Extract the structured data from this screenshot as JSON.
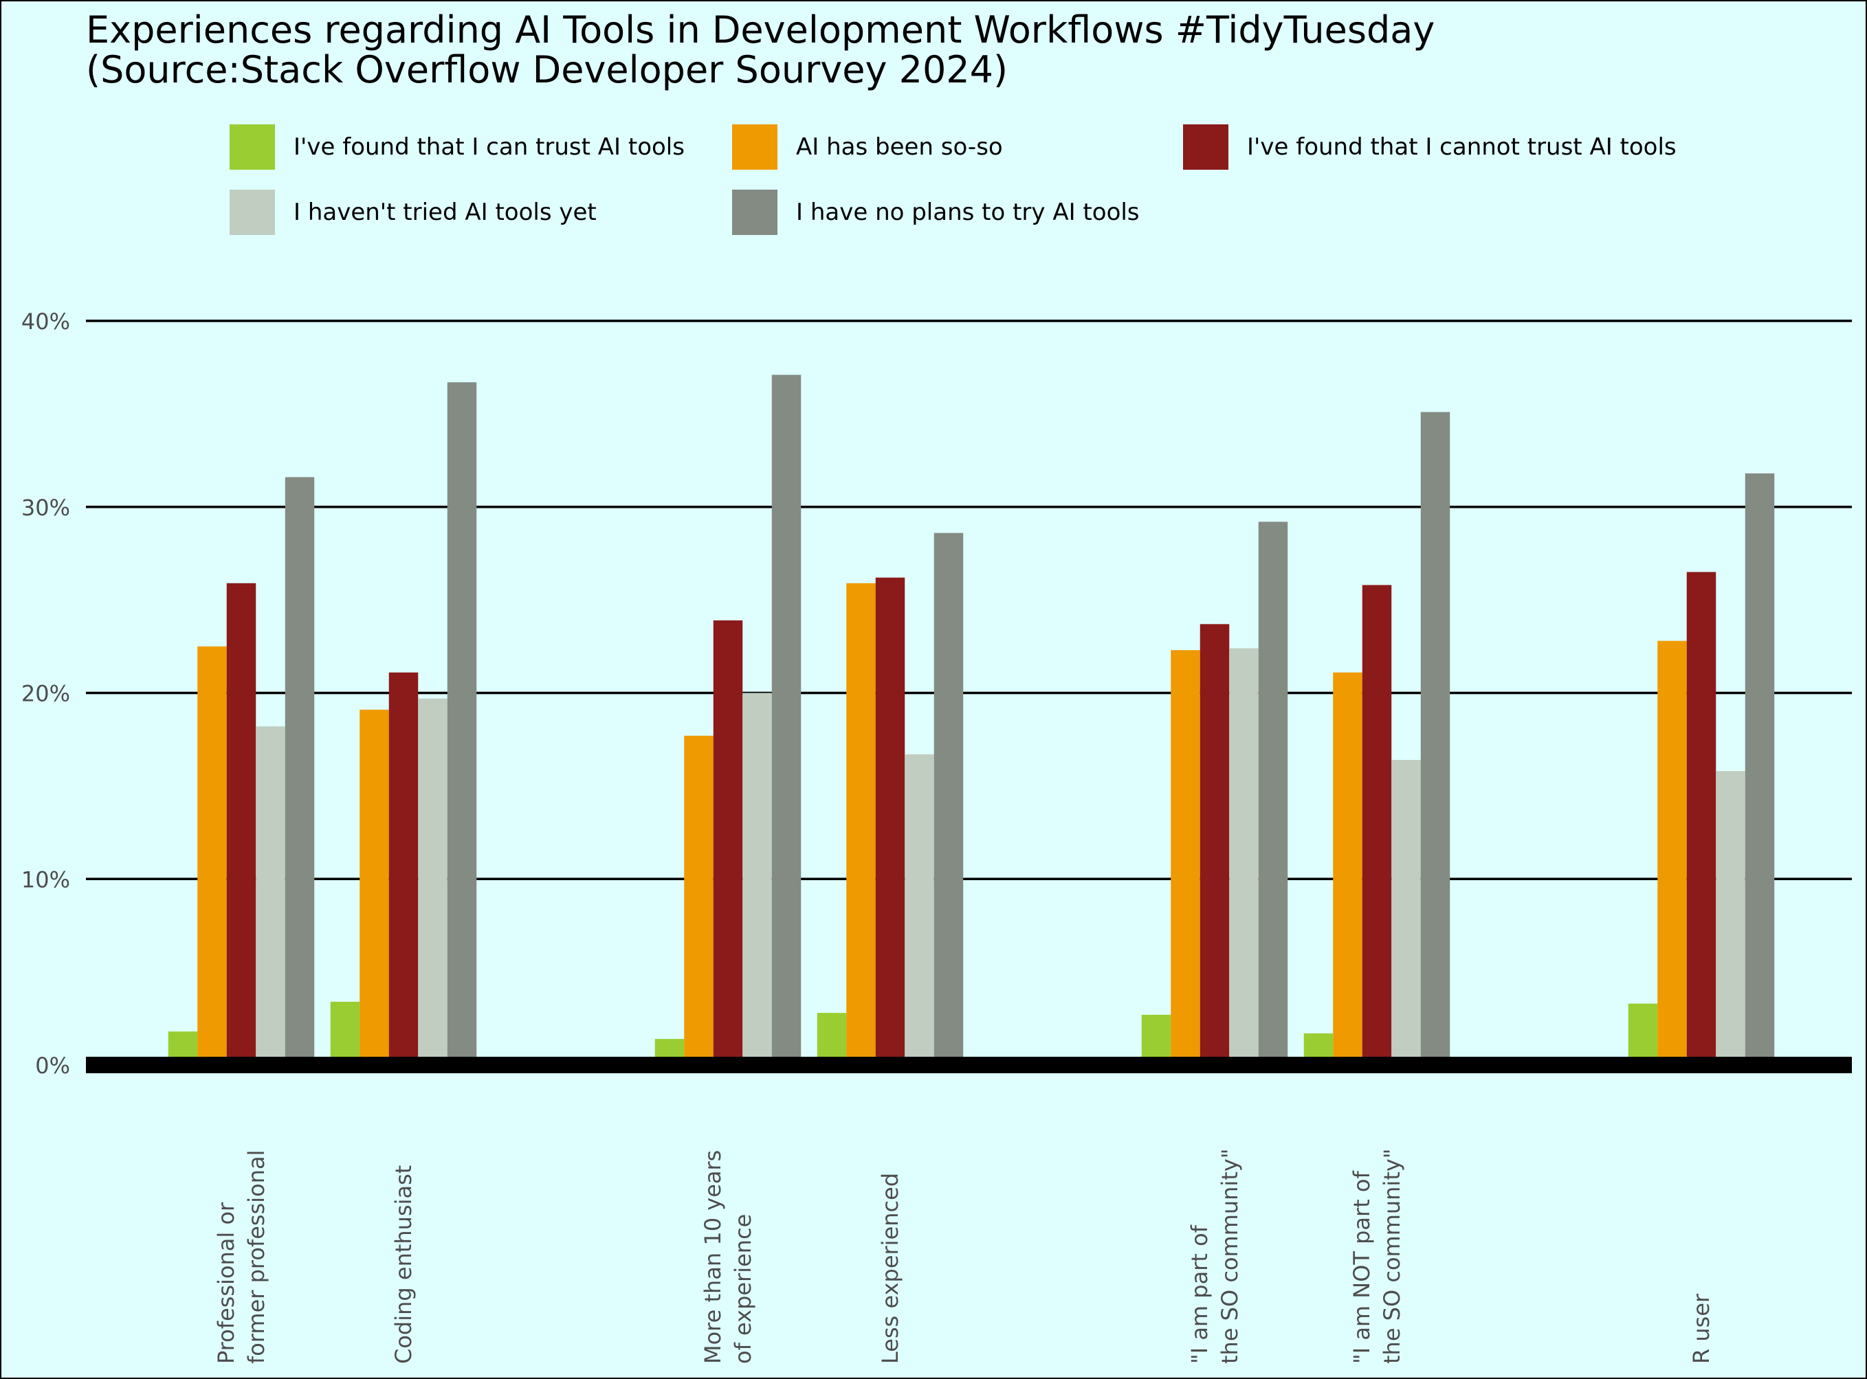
{
  "title": "Experiences regarding AI Tools in Development Workflows   #TidyTuesday",
  "subtitle": "(Source:Stack Overflow Developer Sourvey 2024)",
  "chart_data": {
    "type": "bar",
    "categories": [
      [
        "Professional or",
        "former professional"
      ],
      [
        "Coding enthusiast"
      ],
      [
        "More than 10 years",
        "of experience"
      ],
      [
        "Less experienced"
      ],
      [
        "\"I am part of",
        "the SO community\""
      ],
      [
        "\"I am NOT part of",
        "the SO community\""
      ],
      [
        "R user"
      ]
    ],
    "series": [
      {
        "name": "I've found that I can trust AI tools",
        "color": "#9acd32",
        "values": [
          1.8,
          3.4,
          1.4,
          2.8,
          2.7,
          1.7,
          3.3
        ]
      },
      {
        "name": "AI has been so-so",
        "color": "#ee9a00",
        "values": [
          22.5,
          19.1,
          17.7,
          25.9,
          22.3,
          21.1,
          22.8
        ]
      },
      {
        "name": "I've found that I cannot trust AI tools",
        "color": "#8b1a1a",
        "values": [
          25.9,
          21.1,
          23.9,
          26.2,
          23.7,
          25.8,
          26.5
        ]
      },
      {
        "name": "I haven't tried AI tools yet",
        "color": "#c1cdc1",
        "values": [
          18.2,
          19.7,
          20.0,
          16.7,
          22.4,
          16.4,
          15.8
        ]
      },
      {
        "name": "I have no plans to try AI tools",
        "color": "#838b83",
        "values": [
          31.6,
          36.7,
          37.1,
          28.6,
          29.2,
          35.1,
          31.8
        ]
      }
    ],
    "ylim": [
      0,
      40
    ],
    "yticks": [
      0,
      10,
      20,
      30,
      40
    ],
    "ytick_labels": [
      "0%",
      "10%",
      "20%",
      "30%",
      "40%"
    ],
    "grid": true,
    "legend_position": "top"
  }
}
